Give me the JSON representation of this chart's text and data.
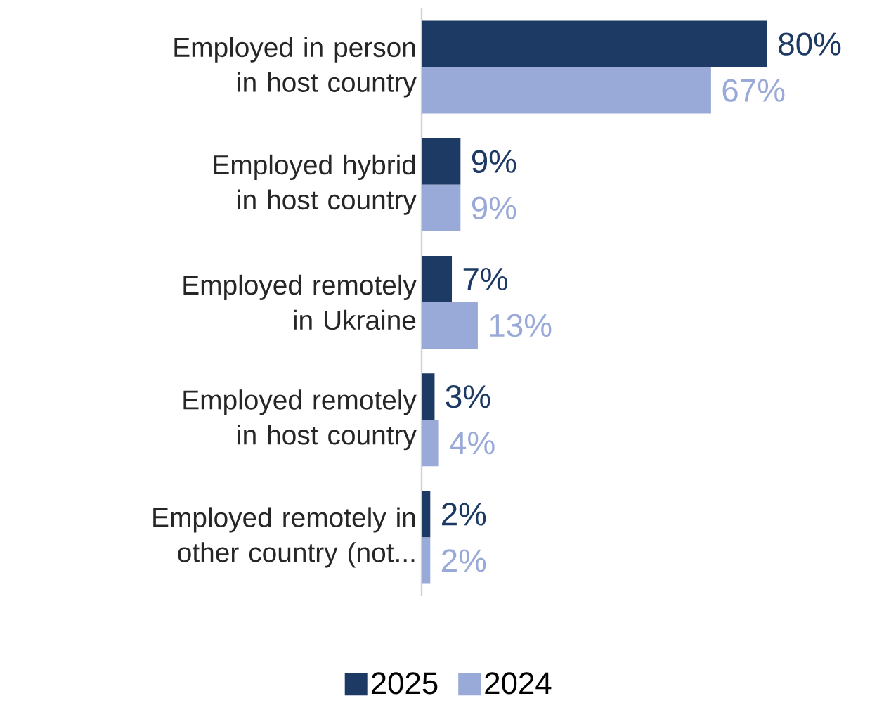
{
  "chart_data": {
    "type": "bar",
    "orientation": "horizontal",
    "categories": [
      "Employed in person in host country",
      "Employed hybrid in host country",
      "Employed remotely in Ukraine",
      "Employed remotely in host country",
      "Employed remotely in other country (not..."
    ],
    "series": [
      {
        "name": "2025",
        "color": "#1c3a63",
        "values": [
          80,
          9,
          7,
          3,
          2
        ],
        "value_labels": [
          "80%",
          "9%",
          "7%",
          "3%",
          "2%"
        ]
      },
      {
        "name": "2024",
        "color": "#9aaad8",
        "values": [
          67,
          9,
          13,
          4,
          2
        ],
        "value_labels": [
          "67%",
          "9%",
          "13%",
          "4%",
          "2%"
        ]
      }
    ],
    "legend": "bottom"
  }
}
